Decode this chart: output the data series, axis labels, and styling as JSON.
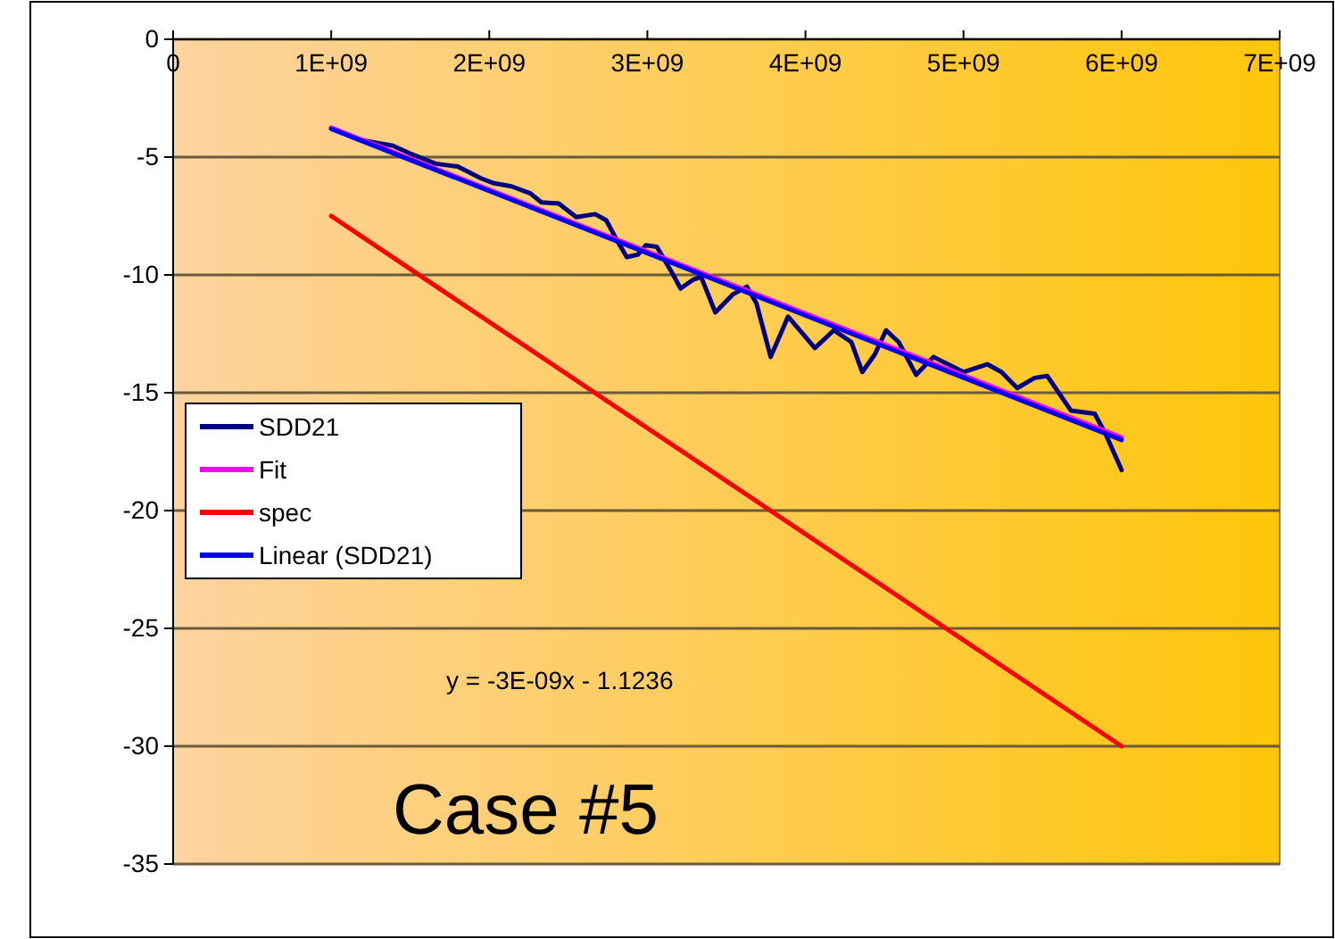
{
  "chart_data": {
    "type": "line",
    "xlim": [
      0,
      7000000000
    ],
    "ylim": [
      -35,
      0
    ],
    "xticks": [
      0,
      {
        "value": 1000000000,
        "label": "1E+09"
      },
      {
        "value": 2000000000,
        "label": "2E+09"
      },
      {
        "value": 3000000000,
        "label": "3E+09"
      },
      {
        "value": 4000000000,
        "label": "4E+09"
      },
      {
        "value": 5000000000,
        "label": "5E+09"
      },
      {
        "value": 6000000000,
        "label": "6E+09"
      },
      {
        "value": 7000000000,
        "label": "7E+09"
      }
    ],
    "yticks": [
      0,
      -5,
      -10,
      -15,
      -20,
      -25,
      -30,
      -35
    ],
    "grid": "y",
    "legend": "left",
    "marker": "none",
    "line_style": "solid",
    "annotations": [
      "y = -3E-09x - 1.1236",
      "Case #5"
    ],
    "series": [
      {
        "name": "SDD21",
        "color": "#000080",
        "x": [
          1000000000.0,
          1180000000.0,
          1390000000.0,
          1500000000.0,
          1660000000.0,
          1800000000.0,
          1950000000.0,
          2030000000.0,
          2140000000.0,
          2260000000.0,
          2330000000.0,
          2440000000.0,
          2550000000.0,
          2670000000.0,
          2740000000.0,
          2810000000.0,
          2870000000.0,
          2940000000.0,
          2990000000.0,
          3060000000.0,
          3160000000.0,
          3210000000.0,
          3290000000.0,
          3340000000.0,
          3430000000.0,
          3540000000.0,
          3630000000.0,
          3690000000.0,
          3780000000.0,
          3890000000.0,
          4060000000.0,
          4180000000.0,
          4290000000.0,
          4360000000.0,
          4440000000.0,
          4510000000.0,
          4590000000.0,
          4700000000.0,
          4810000000.0,
          5000000000.0,
          5150000000.0,
          5240000000.0,
          5340000000.0,
          5450000000.0,
          5530000000.0,
          5680000000.0,
          5830000000.0,
          5900000000.0,
          6000000000.0
        ],
        "values": [
          -3.76,
          -4.27,
          -4.52,
          -4.85,
          -5.28,
          -5.4,
          -5.91,
          -6.11,
          -6.24,
          -6.54,
          -6.92,
          -6.97,
          -7.55,
          -7.42,
          -7.68,
          -8.56,
          -9.24,
          -9.14,
          -8.74,
          -8.81,
          -9.95,
          -10.58,
          -10.2,
          -10.08,
          -11.59,
          -10.83,
          -10.5,
          -11.2,
          -13.48,
          -11.77,
          -13.1,
          -12.35,
          -12.85,
          -14.12,
          -13.36,
          -12.35,
          -12.85,
          -14.24,
          -13.48,
          -14.12,
          -13.79,
          -14.12,
          -14.8,
          -14.37,
          -14.29,
          -15.76,
          -15.89,
          -16.77,
          -18.28
        ]
      },
      {
        "name": "Fit",
        "color": "#ff00ff",
        "x": [
          1000000000,
          6000000000
        ],
        "values": [
          -3.75,
          -16.9
        ]
      },
      {
        "name": "spec",
        "color": "#ff0000",
        "x": [
          1000000000,
          6000000000
        ],
        "values": [
          -7.5,
          -30
        ]
      },
      {
        "name": "Linear (SDD21)",
        "color": "#0000ff",
        "x": [
          1000000000,
          6000000000
        ],
        "values": [
          -3.8,
          -17.0
        ]
      }
    ]
  }
}
